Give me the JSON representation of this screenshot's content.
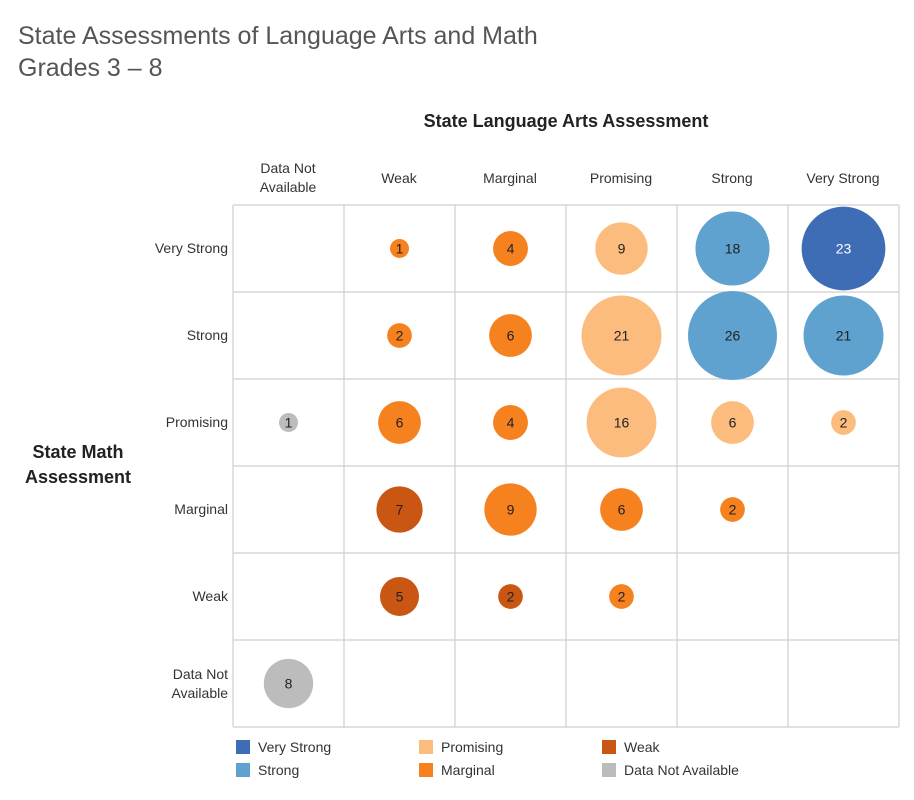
{
  "title": {
    "line1": "State Assessments of Language Arts and Math",
    "line2": "Grades 3 – 8"
  },
  "chart_data": {
    "type": "bubble-matrix",
    "title": "State Assessments of Language Arts and Math Grades 3 – 8",
    "xlabel": "State Language Arts Assessment",
    "ylabel": "State Math Assessment",
    "columns": [
      "Data Not\nAvailable",
      "Weak",
      "Marginal",
      "Promising",
      "Strong",
      "Very Strong"
    ],
    "rows": [
      "Very Strong",
      "Strong",
      "Promising",
      "Marginal",
      "Weak",
      "Data Not\nAvailable"
    ],
    "colors": {
      "Very Strong": "#3f6db5",
      "Strong": "#5fa2d0",
      "Promising": "#fbbc7e",
      "Marginal": "#f6811f",
      "Weak": "#c95713",
      "Data Not Available": "#bcbcbc"
    },
    "cells": [
      {
        "row": "Very Strong",
        "col": "Weak",
        "value": 1,
        "category": "Marginal"
      },
      {
        "row": "Very Strong",
        "col": "Marginal",
        "value": 4,
        "category": "Marginal"
      },
      {
        "row": "Very Strong",
        "col": "Promising",
        "value": 9,
        "category": "Promising"
      },
      {
        "row": "Very Strong",
        "col": "Strong",
        "value": 18,
        "category": "Strong"
      },
      {
        "row": "Very Strong",
        "col": "Very Strong",
        "value": 23,
        "category": "Very Strong"
      },
      {
        "row": "Strong",
        "col": "Weak",
        "value": 2,
        "category": "Marginal"
      },
      {
        "row": "Strong",
        "col": "Marginal",
        "value": 6,
        "category": "Marginal"
      },
      {
        "row": "Strong",
        "col": "Promising",
        "value": 21,
        "category": "Promising"
      },
      {
        "row": "Strong",
        "col": "Strong",
        "value": 26,
        "category": "Strong"
      },
      {
        "row": "Strong",
        "col": "Very Strong",
        "value": 21,
        "category": "Strong"
      },
      {
        "row": "Promising",
        "col": "Data Not\nAvailable",
        "value": 1,
        "category": "Data Not Available"
      },
      {
        "row": "Promising",
        "col": "Weak",
        "value": 6,
        "category": "Marginal"
      },
      {
        "row": "Promising",
        "col": "Marginal",
        "value": 4,
        "category": "Marginal"
      },
      {
        "row": "Promising",
        "col": "Promising",
        "value": 16,
        "category": "Promising"
      },
      {
        "row": "Promising",
        "col": "Strong",
        "value": 6,
        "category": "Promising"
      },
      {
        "row": "Promising",
        "col": "Very Strong",
        "value": 2,
        "category": "Promising"
      },
      {
        "row": "Marginal",
        "col": "Weak",
        "value": 7,
        "category": "Weak"
      },
      {
        "row": "Marginal",
        "col": "Marginal",
        "value": 9,
        "category": "Marginal"
      },
      {
        "row": "Marginal",
        "col": "Promising",
        "value": 6,
        "category": "Marginal"
      },
      {
        "row": "Marginal",
        "col": "Strong",
        "value": 2,
        "category": "Marginal"
      },
      {
        "row": "Weak",
        "col": "Weak",
        "value": 5,
        "category": "Weak"
      },
      {
        "row": "Weak",
        "col": "Marginal",
        "value": 2,
        "category": "Weak"
      },
      {
        "row": "Weak",
        "col": "Promising",
        "value": 2,
        "category": "Marginal"
      },
      {
        "row": "Data Not\nAvailable",
        "col": "Data Not\nAvailable",
        "value": 8,
        "category": "Data Not Available"
      }
    ],
    "legend": [
      "Very Strong",
      "Strong",
      "Promising",
      "Marginal",
      "Weak",
      "Data Not Available"
    ],
    "legend_placement": "bottom"
  }
}
